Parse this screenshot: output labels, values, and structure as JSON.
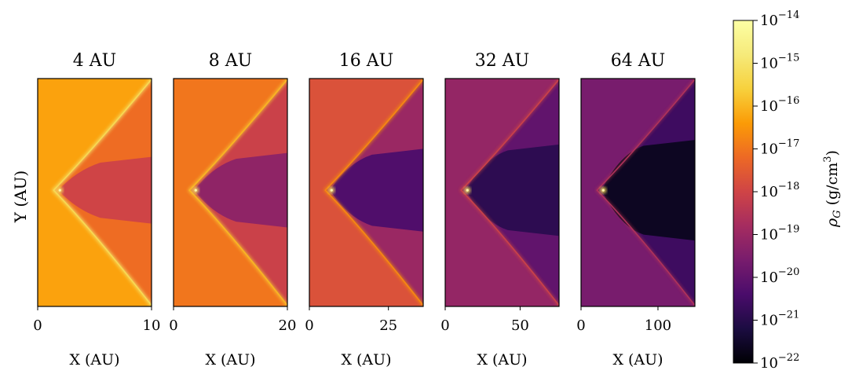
{
  "chart_data": {
    "type": "heatmap",
    "colormap": "inferno",
    "shared_ylabel": "Y (AU)",
    "colorbar": {
      "label": "ρ_G (g/cm³)",
      "label_base": "ρ",
      "label_sub": "G",
      "label_rest": "(g/cm",
      "label_sup": "3",
      "label_close": ")",
      "scale": "log",
      "range": [
        1e-22,
        1e-14
      ],
      "ticks": [
        {
          "base": "10",
          "exp": "−14"
        },
        {
          "base": "10",
          "exp": "−15"
        },
        {
          "base": "10",
          "exp": "−16"
        },
        {
          "base": "10",
          "exp": "−17"
        },
        {
          "base": "10",
          "exp": "−18"
        },
        {
          "base": "10",
          "exp": "−19"
        },
        {
          "base": "10",
          "exp": "−20"
        },
        {
          "base": "10",
          "exp": "−21"
        },
        {
          "base": "10",
          "exp": "−22"
        }
      ]
    },
    "panels": [
      {
        "title": "4 AU",
        "xlabel": "X (AU)",
        "xlim": [
          0,
          10
        ],
        "xticks": [
          0,
          10
        ],
        "xtick_labels": [
          "0",
          "10"
        ],
        "ambient_log_density": -16.3,
        "interior_log_density": -18.0
      },
      {
        "title": "8 AU",
        "xlabel": "X (AU)",
        "xlim": [
          0,
          20
        ],
        "xticks": [
          0,
          20
        ],
        "xtick_labels": [
          "0",
          "20"
        ],
        "ambient_log_density": -17.0,
        "interior_log_density": -19.2
      },
      {
        "title": "16 AU",
        "xlabel": "X (AU)",
        "xlim": [
          0,
          36
        ],
        "xticks": [
          0,
          25
        ],
        "xtick_labels": [
          "0",
          "25"
        ],
        "ambient_log_density": -17.7,
        "interior_log_density": -20.3
      },
      {
        "title": "32 AU",
        "xlabel": "X (AU)",
        "xlim": [
          0,
          76
        ],
        "xticks": [
          0,
          50
        ],
        "xtick_labels": [
          "0",
          "50"
        ],
        "ambient_log_density": -19.1,
        "interior_log_density": -20.9
      },
      {
        "title": "64 AU",
        "xlabel": "X (AU)",
        "xlim": [
          0,
          148
        ],
        "xticks": [
          0,
          100
        ],
        "xtick_labels": [
          "0",
          "100"
        ],
        "ambient_log_density": -19.6,
        "interior_log_density": -21.6
      }
    ]
  }
}
